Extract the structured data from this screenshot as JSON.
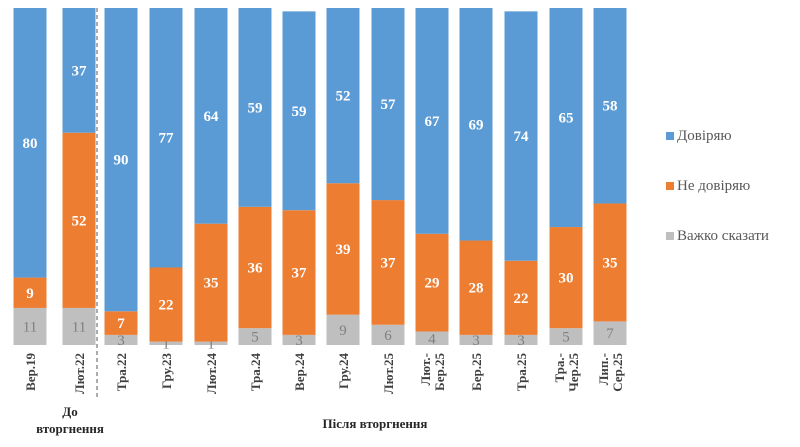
{
  "chart_data": {
    "type": "bar",
    "stacked": true,
    "percent_stacked": true,
    "categories": [
      [
        "Вер.19"
      ],
      [
        "Лют.22"
      ],
      [
        "Тра.22"
      ],
      [
        "Гру.23"
      ],
      [
        "Лют.24"
      ],
      [
        "Тра.24"
      ],
      [
        "Вер.24"
      ],
      [
        "Гру.24"
      ],
      [
        "Лют.25"
      ],
      [
        "Лют.-",
        "Бер.25"
      ],
      [
        "Бер.25"
      ],
      [
        "Тра.25"
      ],
      [
        "Тра.-",
        "Чер.25"
      ],
      [
        "Лип.-",
        "Сер.25"
      ]
    ],
    "series": [
      {
        "name": "Важко сказати",
        "color": "#bfbfbf",
        "values": [
          11,
          11,
          3,
          1,
          1,
          5,
          3,
          9,
          6,
          4,
          3,
          3,
          5,
          7
        ]
      },
      {
        "name": "Не довіряю",
        "color": "#ed7d31",
        "values": [
          9,
          52,
          7,
          22,
          35,
          36,
          37,
          39,
          37,
          29,
          28,
          22,
          30,
          35
        ]
      },
      {
        "name": "Довіряю",
        "color": "#5b9bd5",
        "values": [
          80,
          37,
          90,
          77,
          64,
          59,
          59,
          52,
          57,
          67,
          69,
          74,
          65,
          58
        ]
      }
    ],
    "legend_order": [
      "Довіряю",
      "Не довіряю",
      "Важко сказати"
    ],
    "legend_position": "right",
    "groups": [
      {
        "label": "До вторгнення",
        "categories": [
          0,
          1
        ]
      },
      {
        "label": "Після вторгнення",
        "categories": [
          2,
          13
        ]
      }
    ],
    "separator": "dashed line between Лют.22 and Тра.22",
    "ylim": [
      0,
      100
    ],
    "grid": false
  }
}
